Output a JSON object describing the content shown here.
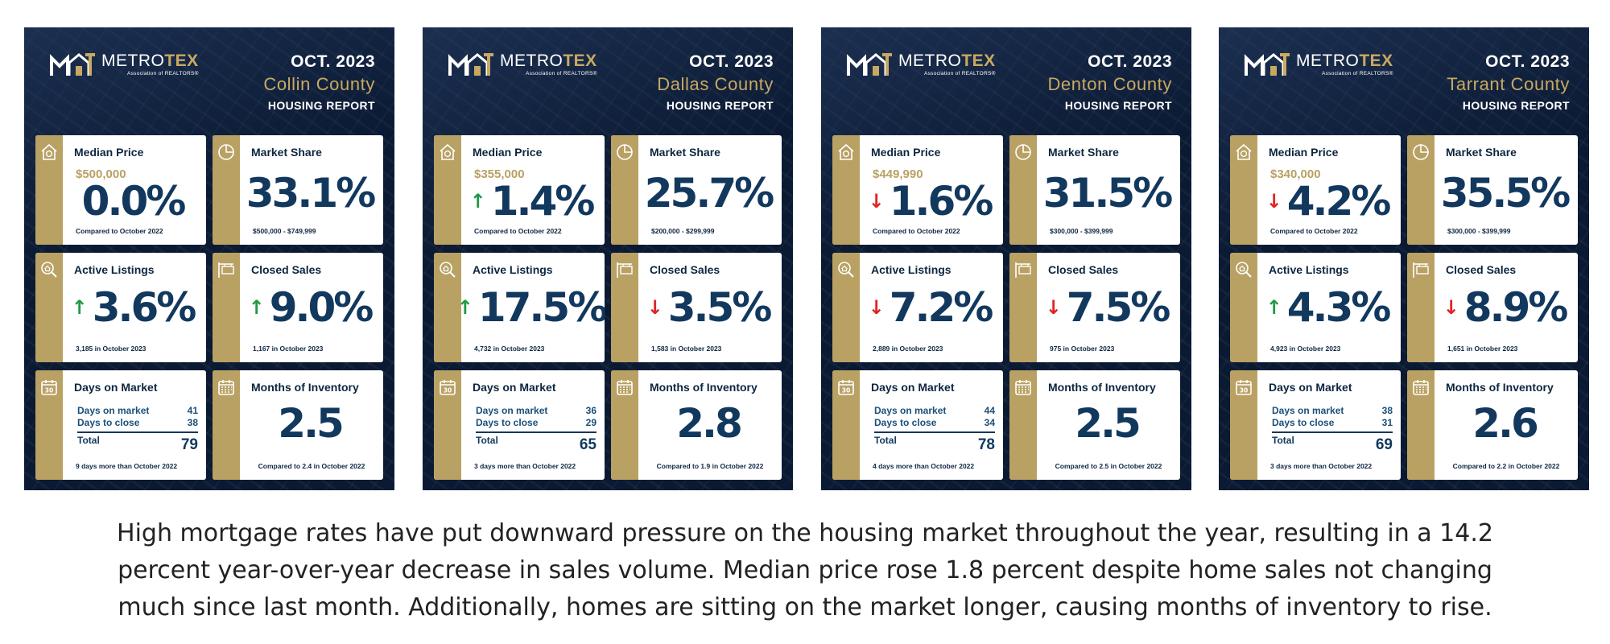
{
  "reports": [
    {
      "logo": {
        "name_white": "METRO",
        "name_gold": "TEX",
        "subtitle": "Association of REALTORS®"
      },
      "date": "OCT. 2023",
      "county": "Collin County",
      "label": "HOUSING REPORT",
      "median_price": {
        "title": "Median Price",
        "price": "$500,000",
        "arrow": "",
        "value": "0.0%",
        "note": "Compared to October 2022"
      },
      "market_share": {
        "title": "Market Share",
        "value": "33.1%",
        "note": "$500,000 - $749,999"
      },
      "active_listings": {
        "title": "Active Listings",
        "arrow": "↑",
        "value": "3.6%",
        "note": "3,185 in October 2023"
      },
      "closed_sales": {
        "title": "Closed Sales",
        "arrow": "↑",
        "value": "9.0%",
        "note": "1,167 in October 2023"
      },
      "days_on_market": {
        "title": "Days on Market",
        "dom_label": "Days on market",
        "dom_value": "41",
        "close_label": "Days to close",
        "close_value": "38",
        "total_label": "Total",
        "total_value": "79",
        "note": "9 days more than October 2022"
      },
      "months_inventory": {
        "title": "Months of Inventory",
        "value": "2.5",
        "note": "Compared to 2.4 in October 2022"
      }
    },
    {
      "logo": {
        "name_white": "METRO",
        "name_gold": "TEX",
        "subtitle": "Association of REALTORS®"
      },
      "date": "OCT. 2023",
      "county": "Dallas County",
      "label": "HOUSING REPORT",
      "median_price": {
        "title": "Median Price",
        "price": "$355,000",
        "arrow": "↑",
        "value": "1.4%",
        "note": "Compared to October 2022"
      },
      "market_share": {
        "title": "Market Share",
        "value": "25.7%",
        "note": "$200,000 - $299,999"
      },
      "active_listings": {
        "title": "Active Listings",
        "arrow": "↑",
        "value": "17.5%",
        "note": "4,732 in October 2023"
      },
      "closed_sales": {
        "title": "Closed Sales",
        "arrow": "↓",
        "value": "3.5%",
        "note": "1,583 in October 2023"
      },
      "days_on_market": {
        "title": "Days on Market",
        "dom_label": "Days on market",
        "dom_value": "36",
        "close_label": "Days to close",
        "close_value": "29",
        "total_label": "Total",
        "total_value": "65",
        "note": "3 days more than October 2022"
      },
      "months_inventory": {
        "title": "Months of Inventory",
        "value": "2.8",
        "note": "Compared to 1.9 in October 2022"
      }
    },
    {
      "logo": {
        "name_white": "METRO",
        "name_gold": "TEX",
        "subtitle": "Association of REALTORS®"
      },
      "date": "OCT. 2023",
      "county": "Denton County",
      "label": "HOUSING REPORT",
      "median_price": {
        "title": "Median Price",
        "price": "$449,990",
        "arrow": "↓",
        "value": "1.6%",
        "note": "Compared to October 2022"
      },
      "market_share": {
        "title": "Market Share",
        "value": "31.5%",
        "note": "$300,000 - $399,999"
      },
      "active_listings": {
        "title": "Active Listings",
        "arrow": "↓",
        "value": "7.2%",
        "note": "2,889 in October 2023"
      },
      "closed_sales": {
        "title": "Closed Sales",
        "arrow": "↓",
        "value": "7.5%",
        "note": "975 in October 2023"
      },
      "days_on_market": {
        "title": "Days on Market",
        "dom_label": "Days on market",
        "dom_value": "44",
        "close_label": "Days to close",
        "close_value": "34",
        "total_label": "Total",
        "total_value": "78",
        "note": "4 days more than October 2022"
      },
      "months_inventory": {
        "title": "Months of Inventory",
        "value": "2.5",
        "note": "Compared to 2.5 in October 2022"
      }
    },
    {
      "logo": {
        "name_white": "METRO",
        "name_gold": "TEX",
        "subtitle": "Association of REALTORS®"
      },
      "date": "OCT. 2023",
      "county": "Tarrant County",
      "label": "HOUSING REPORT",
      "median_price": {
        "title": "Median Price",
        "price": "$340,000",
        "arrow": "↓",
        "value": "4.2%",
        "note": "Compared to October 2022"
      },
      "market_share": {
        "title": "Market Share",
        "value": "35.5%",
        "note": "$300,000 - $399,999"
      },
      "active_listings": {
        "title": "Active Listings",
        "arrow": "↑",
        "value": "4.3%",
        "note": "4,923 in October 2023"
      },
      "closed_sales": {
        "title": "Closed Sales",
        "arrow": "↓",
        "value": "8.9%",
        "note": "1,651 in October 2023"
      },
      "days_on_market": {
        "title": "Days on Market",
        "dom_label": "Days on market",
        "dom_value": "38",
        "close_label": "Days to close",
        "close_value": "31",
        "total_label": "Total",
        "total_value": "69",
        "note": "3 days more than October 2022"
      },
      "months_inventory": {
        "title": "Months of Inventory",
        "value": "2.6",
        "note": "Compared to 2.2 in October 2022"
      }
    }
  ],
  "caption": [
    "High mortgage rates have put downward pressure on the housing market throughout the year, resulting in a 14.2",
    "percent year-over-year decrease in sales volume. Median price rose 1.8 percent despite home sales not changing",
    "much since last month. Additionally, homes are sitting on the market longer, causing months of inventory to rise."
  ],
  "colors": {
    "navy_background": "#0b1a33",
    "gold_accent": "#b9a164",
    "value_blue": "#12385e",
    "arrow_up": "#1f9a45",
    "arrow_down": "#e02424"
  },
  "icons": {
    "logo": "metrotex-house-logo-icon",
    "median_price": "house-dollar-icon",
    "market_share": "pie-chart-icon",
    "active_listings": "magnifier-house-icon",
    "closed_sales": "sold-sign-icon",
    "days_on_market": "calendar-30-icon",
    "months_inventory": "calendar-grid-icon"
  }
}
